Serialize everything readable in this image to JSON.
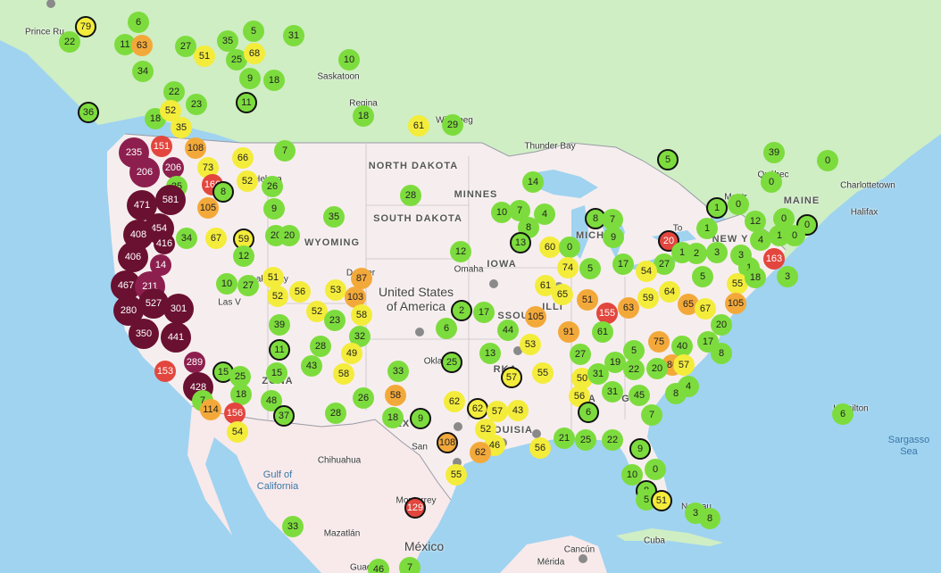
{
  "colors": {
    "ocean": "#9fd3f0",
    "canada": "#cfeec4",
    "usa": "#f6eeee",
    "mexico": "#f8e9ea",
    "good": "#7ddc3d",
    "moderate": "#f4ec3b",
    "usg": "#f3a93a",
    "unhealthy": "#e2463e",
    "very_unhealthy": "#8d1f4f",
    "hazardous": "#6a1030"
  },
  "labels": {
    "countries": {
      "usa": "United States\nof America",
      "mexico": "México",
      "cuba": "Cuba"
    },
    "states": {
      "nd": "NORTH DAKOTA",
      "sd": "SOUTH DAKOTA",
      "wy": "WYOMING",
      "ia": "IOWA",
      "mn": "MINNES",
      "me": "MAINE",
      "mi": "MICH",
      "ny": "NEW Y",
      "oh": "OHI",
      "il": "ILLI",
      "mo": "SSOU",
      "az": "ZONA",
      "tx": "TEX",
      "ok": "Okla",
      "ar": "RKA",
      "la": "OUISIA",
      "al": "ALA",
      "ga": "GEO"
    },
    "cities": {
      "prince": "Prince Ru",
      "saskatoon": "Saskatoon",
      "regina": "Regina",
      "winnipeg": "Winnipeg",
      "thunderbay": "Thunder Bay",
      "quebec": "Québec",
      "charlottetown": "Charlottetown",
      "halifax": "Halifax",
      "hamilton": "Hamilton",
      "chihuahua": "Chihuahua",
      "monterrey": "Monterrey",
      "mazatlan": "Mazatlán",
      "merida": "Mérida",
      "cancun": "Cancún",
      "nassau": "Nassau",
      "guadalajara": "Guada",
      "toronto": "To",
      "helena": "Helena",
      "omaha": "Omaha",
      "lasvegas": "Las V",
      "saltlake": "Lake City",
      "denver": "Denver",
      "sanantonio": "San",
      "ottawa": "Montr"
    },
    "water": {
      "gulfca": "Gulf of\nCalifornia",
      "sargasso": "Sargasso\nSea"
    }
  },
  "markers": [
    {
      "v": "79",
      "c": "moderate",
      "o": 1
    },
    {
      "v": "22",
      "c": "good"
    },
    {
      "v": "6",
      "c": "good"
    },
    {
      "v": "11",
      "c": "good"
    },
    {
      "v": "63",
      "c": "usg"
    },
    {
      "v": "27",
      "c": "good"
    },
    {
      "v": "35",
      "c": "good"
    },
    {
      "v": "5",
      "c": "good"
    },
    {
      "v": "31",
      "c": "good"
    },
    {
      "v": "51",
      "c": "moderate"
    },
    {
      "v": "25",
      "c": "good"
    },
    {
      "v": "68",
      "c": "moderate"
    },
    {
      "v": "34",
      "c": "good"
    },
    {
      "v": "10",
      "c": "good"
    },
    {
      "v": "9",
      "c": "good"
    },
    {
      "v": "18",
      "c": "good"
    },
    {
      "v": "22",
      "c": "good"
    },
    {
      "v": "23",
      "c": "good"
    },
    {
      "v": "11",
      "c": "good",
      "o": 1
    },
    {
      "v": "36",
      "c": "good",
      "o": 1
    },
    {
      "v": "18",
      "c": "good"
    },
    {
      "v": "52",
      "c": "moderate"
    },
    {
      "v": "35",
      "c": "moderate"
    },
    {
      "v": "18",
      "c": "good"
    },
    {
      "v": "61",
      "c": "moderate"
    },
    {
      "v": "29",
      "c": "good"
    },
    {
      "v": "235",
      "c": "very_unhealthy",
      "b": 1
    },
    {
      "v": "151",
      "c": "unhealthy"
    },
    {
      "v": "108",
      "c": "usg"
    },
    {
      "v": "206",
      "c": "very_unhealthy",
      "b": 1
    },
    {
      "v": "206",
      "c": "very_unhealthy"
    },
    {
      "v": "73",
      "c": "moderate"
    },
    {
      "v": "66",
      "c": "moderate"
    },
    {
      "v": "7",
      "c": "good"
    },
    {
      "v": "25",
      "c": "good"
    },
    {
      "v": "14",
      "c": "good"
    },
    {
      "v": "5",
      "c": "good",
      "o": 1
    },
    {
      "v": "39",
      "c": "good"
    },
    {
      "v": "0",
      "c": "good"
    },
    {
      "v": "0",
      "c": "good"
    },
    {
      "v": "52",
      "c": "moderate"
    },
    {
      "v": "166",
      "c": "unhealthy"
    },
    {
      "v": "8",
      "c": "good",
      "o": 1
    },
    {
      "v": "26",
      "c": "good"
    },
    {
      "v": "581",
      "c": "hazardous",
      "b": 1
    },
    {
      "v": "471",
      "c": "hazardous",
      "b": 1
    },
    {
      "v": "105",
      "c": "usg"
    },
    {
      "v": "9",
      "c": "good"
    },
    {
      "v": "35",
      "c": "good"
    },
    {
      "v": "28",
      "c": "good"
    },
    {
      "v": "10",
      "c": "good"
    },
    {
      "v": "7",
      "c": "good"
    },
    {
      "v": "4",
      "c": "good"
    },
    {
      "v": "8",
      "c": "good",
      "o": 1
    },
    {
      "v": "7",
      "c": "good"
    },
    {
      "v": "1",
      "c": "good",
      "o": 1
    },
    {
      "v": "0",
      "c": "good"
    },
    {
      "v": "12",
      "c": "good"
    },
    {
      "v": "0",
      "c": "good"
    },
    {
      "v": "0",
      "c": "good",
      "o": 1
    },
    {
      "v": "454",
      "c": "hazardous",
      "b": 1
    },
    {
      "v": "20",
      "c": "good"
    },
    {
      "v": "20",
      "c": "good"
    },
    {
      "v": "8",
      "c": "good"
    },
    {
      "v": "9",
      "c": "good"
    },
    {
      "v": "408",
      "c": "hazardous",
      "b": 1
    },
    {
      "v": "416",
      "c": "hazardous"
    },
    {
      "v": "34",
      "c": "good"
    },
    {
      "v": "67",
      "c": "moderate"
    },
    {
      "v": "59",
      "c": "moderate",
      "o": 1
    },
    {
      "v": "13",
      "c": "good",
      "o": 1
    },
    {
      "v": "60",
      "c": "moderate"
    },
    {
      "v": "12",
      "c": "good"
    },
    {
      "v": "20",
      "c": "unhealthy",
      "o": 1
    },
    {
      "v": "1",
      "c": "good"
    },
    {
      "v": "4",
      "c": "good"
    },
    {
      "v": "1",
      "c": "good"
    },
    {
      "v": "0",
      "c": "good"
    },
    {
      "v": "406",
      "c": "hazardous",
      "b": 1
    },
    {
      "v": "14",
      "c": "very_unhealthy"
    },
    {
      "v": "12",
      "c": "good"
    },
    {
      "v": "0",
      "c": "good"
    },
    {
      "v": "74",
      "c": "moderate"
    },
    {
      "v": "5",
      "c": "good"
    },
    {
      "v": "17",
      "c": "good"
    },
    {
      "v": "27",
      "c": "good"
    },
    {
      "v": "1",
      "c": "good"
    },
    {
      "v": "2",
      "c": "good"
    },
    {
      "v": "3",
      "c": "good"
    },
    {
      "v": "3",
      "c": "good"
    },
    {
      "v": "163",
      "c": "unhealthy"
    },
    {
      "v": "1",
      "c": "good"
    },
    {
      "v": "467",
      "c": "hazardous",
      "b": 1
    },
    {
      "v": "211",
      "c": "very_unhealthy",
      "b": 1
    },
    {
      "v": "10",
      "c": "good"
    },
    {
      "v": "27",
      "c": "good"
    },
    {
      "v": "51",
      "c": "moderate"
    },
    {
      "v": "87",
      "c": "usg"
    },
    {
      "v": "56",
      "c": "moderate"
    },
    {
      "v": "53",
      "c": "moderate"
    },
    {
      "v": "61",
      "c": "moderate"
    },
    {
      "v": "65",
      "c": "moderate"
    },
    {
      "v": "54",
      "c": "moderate"
    },
    {
      "v": "64",
      "c": "moderate"
    },
    {
      "v": "5",
      "c": "good"
    },
    {
      "v": "55",
      "c": "moderate"
    },
    {
      "v": "18",
      "c": "good"
    },
    {
      "v": "3",
      "c": "good"
    },
    {
      "v": "527",
      "c": "hazardous",
      "b": 1
    },
    {
      "v": "301",
      "c": "hazardous",
      "b": 1
    },
    {
      "v": "280",
      "c": "hazardous",
      "b": 1
    },
    {
      "v": "52",
      "c": "moderate"
    },
    {
      "v": "103",
      "c": "usg"
    },
    {
      "v": "52",
      "c": "moderate"
    },
    {
      "v": "23",
      "c": "good"
    },
    {
      "v": "58",
      "c": "moderate"
    },
    {
      "v": "2",
      "c": "good",
      "o": 1
    },
    {
      "v": "17",
      "c": "good"
    },
    {
      "v": "51",
      "c": "usg"
    },
    {
      "v": "59",
      "c": "moderate"
    },
    {
      "v": "63",
      "c": "usg"
    },
    {
      "v": "65",
      "c": "usg"
    },
    {
      "v": "67",
      "c": "moderate"
    },
    {
      "v": "105",
      "c": "usg"
    },
    {
      "v": "155",
      "c": "unhealthy"
    },
    {
      "v": "105",
      "c": "usg"
    },
    {
      "v": "350",
      "c": "hazardous",
      "b": 1
    },
    {
      "v": "441",
      "c": "hazardous",
      "b": 1
    },
    {
      "v": "39",
      "c": "good"
    },
    {
      "v": "6",
      "c": "good"
    },
    {
      "v": "44",
      "c": "good"
    },
    {
      "v": "91",
      "c": "usg"
    },
    {
      "v": "61",
      "c": "good"
    },
    {
      "v": "20",
      "c": "good"
    },
    {
      "v": "32",
      "c": "good"
    },
    {
      "v": "28",
      "c": "good"
    },
    {
      "v": "53",
      "c": "moderate"
    },
    {
      "v": "75",
      "c": "usg"
    },
    {
      "v": "40",
      "c": "good"
    },
    {
      "v": "17",
      "c": "good"
    },
    {
      "v": "8",
      "c": "good"
    },
    {
      "v": "153",
      "c": "unhealthy"
    },
    {
      "v": "289",
      "c": "very_unhealthy"
    },
    {
      "v": "11",
      "c": "good",
      "o": 1
    },
    {
      "v": "49",
      "c": "moderate"
    },
    {
      "v": "5",
      "c": "good"
    },
    {
      "v": "27",
      "c": "good"
    },
    {
      "v": "86",
      "c": "usg"
    },
    {
      "v": "57",
      "c": "moderate"
    },
    {
      "v": "15",
      "c": "good",
      "o": 1
    },
    {
      "v": "15",
      "c": "good"
    },
    {
      "v": "25",
      "c": "good"
    },
    {
      "v": "43",
      "c": "good"
    },
    {
      "v": "58",
      "c": "moderate"
    },
    {
      "v": "33",
      "c": "good"
    },
    {
      "v": "25",
      "c": "good",
      "o": 1
    },
    {
      "v": "13",
      "c": "good"
    },
    {
      "v": "55",
      "c": "moderate"
    },
    {
      "v": "57",
      "c": "moderate",
      "o": 1
    },
    {
      "v": "50",
      "c": "moderate"
    },
    {
      "v": "31",
      "c": "good"
    },
    {
      "v": "19",
      "c": "good"
    },
    {
      "v": "22",
      "c": "good"
    },
    {
      "v": "20",
      "c": "good"
    },
    {
      "v": "428",
      "c": "hazardous",
      "b": 1
    },
    {
      "v": "7",
      "c": "good"
    },
    {
      "v": "18",
      "c": "good"
    },
    {
      "v": "48",
      "c": "good"
    },
    {
      "v": "26",
      "c": "good"
    },
    {
      "v": "58",
      "c": "usg"
    },
    {
      "v": "56",
      "c": "moderate"
    },
    {
      "v": "31",
      "c": "good"
    },
    {
      "v": "45",
      "c": "good"
    },
    {
      "v": "8",
      "c": "good"
    },
    {
      "v": "4",
      "c": "good"
    },
    {
      "v": "114",
      "c": "usg"
    },
    {
      "v": "156",
      "c": "unhealthy"
    },
    {
      "v": "37",
      "c": "good",
      "o": 1
    },
    {
      "v": "28",
      "c": "good"
    },
    {
      "v": "18",
      "c": "good"
    },
    {
      "v": "9",
      "c": "good",
      "o": 1
    },
    {
      "v": "62",
      "c": "moderate"
    },
    {
      "v": "62",
      "c": "moderate",
      "o": 1
    },
    {
      "v": "57",
      "c": "moderate"
    },
    {
      "v": "43",
      "c": "moderate"
    },
    {
      "v": "6",
      "c": "good",
      "o": 1
    },
    {
      "v": "7",
      "c": "good"
    },
    {
      "v": "54",
      "c": "moderate"
    },
    {
      "v": "52",
      "c": "moderate"
    },
    {
      "v": "108",
      "c": "usg",
      "o": 1
    },
    {
      "v": "46",
      "c": "moderate"
    },
    {
      "v": "56",
      "c": "moderate"
    },
    {
      "v": "21",
      "c": "good"
    },
    {
      "v": "25",
      "c": "good"
    },
    {
      "v": "22",
      "c": "good"
    },
    {
      "v": "9",
      "c": "good",
      "o": 1
    },
    {
      "v": "62",
      "c": "usg"
    },
    {
      "v": "55",
      "c": "moderate"
    },
    {
      "v": "0",
      "c": "good"
    },
    {
      "v": "10",
      "c": "good"
    },
    {
      "v": "8",
      "c": "good",
      "o": 1
    },
    {
      "v": "5",
      "c": "good"
    },
    {
      "v": "51",
      "c": "moderate",
      "o": 1
    },
    {
      "v": "3",
      "c": "good"
    },
    {
      "v": "8",
      "c": "good"
    },
    {
      "v": "129",
      "c": "unhealthy",
      "o": 1
    },
    {
      "v": "33",
      "c": "good"
    },
    {
      "v": "46",
      "c": "good"
    },
    {
      "v": "7",
      "c": "good"
    },
    {
      "v": "6",
      "c": "good"
    }
  ]
}
